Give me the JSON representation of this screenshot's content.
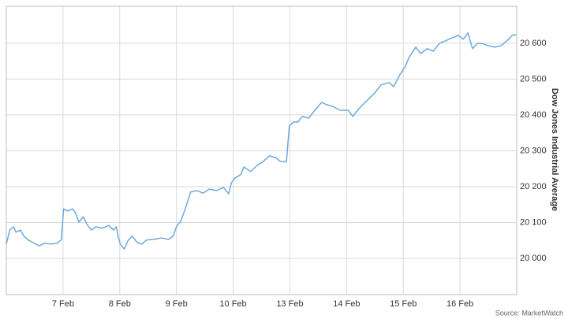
{
  "chart_data": {
    "type": "line",
    "y_axis_label": "Dow Jones Industrial Average",
    "source": "Source: MarketWatch",
    "color": "#6fa8dc",
    "grid": true,
    "y_axis_side": "right",
    "x": [
      0,
      0.06,
      0.13,
      0.17,
      0.25,
      0.31,
      0.39,
      0.47,
      0.58,
      0.67,
      0.79,
      0.89,
      0.97,
      1.01,
      1.08,
      1.17,
      1.22,
      1.28,
      1.36,
      1.42,
      1.5,
      1.58,
      1.69,
      1.81,
      1.89,
      1.94,
      1.97,
      2.01,
      2.08,
      2.15,
      2.22,
      2.31,
      2.39,
      2.47,
      2.6,
      2.74,
      2.86,
      2.94,
      3,
      3.08,
      3.17,
      3.25,
      3.36,
      3.47,
      3.58,
      3.71,
      3.83,
      3.92,
      3.97,
      4.03,
      4.13,
      4.19,
      4.31,
      4.42,
      4.53,
      4.64,
      4.75,
      4.83,
      4.94,
      4.99,
      5.06,
      5.14,
      5.22,
      5.33,
      5.44,
      5.56,
      5.64,
      5.75,
      5.89,
      6.03,
      6.11,
      6.22,
      6.36,
      6.5,
      6.61,
      6.75,
      6.83,
      6.94,
      7.03,
      7.11,
      7.22,
      7.31,
      7.42,
      7.53,
      7.64,
      7.75,
      7.86,
      7.97,
      8.06,
      8.14,
      8.22,
      8.31,
      8.42,
      8.5,
      8.61,
      8.72,
      8.83,
      8.92,
      8.99
    ],
    "values": [
      20040,
      20079,
      20088,
      20073,
      20079,
      20062,
      20051,
      20044,
      20035,
      20042,
      20040,
      20042,
      20051,
      20138,
      20132,
      20138,
      20127,
      20101,
      20116,
      20095,
      20079,
      20088,
      20084,
      20092,
      20079,
      20088,
      20062,
      20040,
      20026,
      20051,
      20062,
      20044,
      20040,
      20051,
      20053,
      20057,
      20053,
      20062,
      20088,
      20105,
      20145,
      20185,
      20189,
      20182,
      20193,
      20189,
      20198,
      20180,
      20211,
      20224,
      20233,
      20255,
      20242,
      20259,
      20270,
      20286,
      20281,
      20270,
      20270,
      20369,
      20380,
      20380,
      20396,
      20391,
      20413,
      20435,
      20429,
      20424,
      20413,
      20413,
      20396,
      20418,
      20440,
      20462,
      20484,
      20490,
      20479,
      20512,
      20534,
      20563,
      20589,
      20571,
      20585,
      20578,
      20600,
      20607,
      20615,
      20622,
      20611,
      20629,
      20585,
      20600,
      20598,
      20593,
      20589,
      20593,
      20607,
      20622,
      20624
    ],
    "xlim": [
      0,
      9
    ],
    "xticks": [
      {
        "value": 1,
        "label": "7 Feb"
      },
      {
        "value": 2,
        "label": "8 Feb"
      },
      {
        "value": 3,
        "label": "9 Feb"
      },
      {
        "value": 4,
        "label": "10 Feb"
      },
      {
        "value": 5,
        "label": "13 Feb"
      },
      {
        "value": 6,
        "label": "14 Feb"
      },
      {
        "value": 7,
        "label": "15 Feb"
      },
      {
        "value": 8,
        "label": "16 Feb"
      }
    ],
    "ylim": [
      19899,
      20703
    ],
    "yticks": [
      {
        "value": 20000,
        "label": "20 000"
      },
      {
        "value": 20100,
        "label": "20 100"
      },
      {
        "value": 20200,
        "label": "20 200"
      },
      {
        "value": 20300,
        "label": "20 300"
      },
      {
        "value": 20400,
        "label": "20 400"
      },
      {
        "value": 20500,
        "label": "20 500"
      },
      {
        "value": 20600,
        "label": "20 600"
      }
    ]
  }
}
